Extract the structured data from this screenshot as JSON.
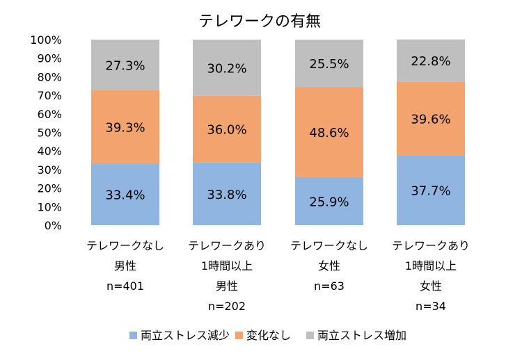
{
  "chart_data": {
    "type": "bar",
    "stacked": true,
    "title": "テレワークの有無",
    "categories": [
      [
        "テレワークなし",
        "男性",
        "n=401"
      ],
      [
        "テレワークあり",
        "1時間以上",
        "男性",
        "n=202"
      ],
      [
        "テレワークなし",
        "女性",
        "n=63"
      ],
      [
        "テレワークあり",
        "1時間以上",
        "女性",
        "n=34"
      ]
    ],
    "series": [
      {
        "name": "両立ストレス減少",
        "color": "#8FB5E0",
        "values": [
          33.4,
          33.8,
          25.9,
          37.7
        ]
      },
      {
        "name": "変化なし",
        "color": "#F3A46E",
        "values": [
          39.3,
          36.0,
          48.6,
          39.6
        ]
      },
      {
        "name": "両立ストレス増加",
        "color": "#BFBFBF",
        "values": [
          27.3,
          30.2,
          25.5,
          22.8
        ]
      }
    ],
    "data_labels": [
      [
        "33.4%",
        "33.8%",
        "25.9%",
        "37.7%"
      ],
      [
        "39.3%",
        "36.0%",
        "48.6%",
        "39.6%"
      ],
      [
        "27.3%",
        "30.2%",
        "25.5%",
        "22.8%"
      ]
    ],
    "yticks": [
      "0%",
      "10%",
      "20%",
      "30%",
      "40%",
      "50%",
      "60%",
      "70%",
      "80%",
      "90%",
      "100%"
    ],
    "ylim": [
      0,
      100
    ],
    "grid": false,
    "legend": "bottom",
    "xlabel": "",
    "ylabel": ""
  }
}
